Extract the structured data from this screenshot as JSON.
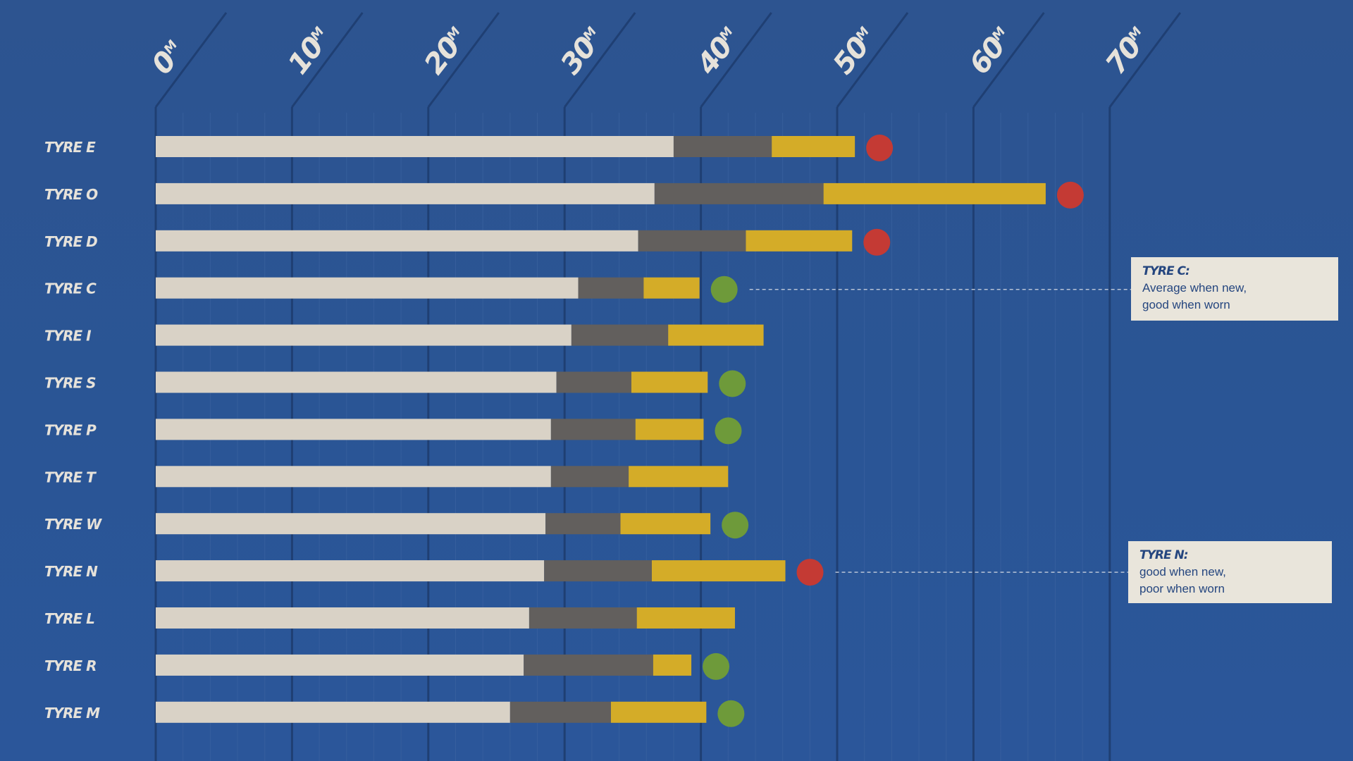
{
  "chart_data": {
    "type": "bar",
    "stacked": true,
    "orientation": "horizontal",
    "xlim": [
      0,
      70
    ],
    "x_ticks": [
      {
        "value": 0,
        "label": "0",
        "unit": "M"
      },
      {
        "value": 10,
        "label": "10",
        "unit": "M"
      },
      {
        "value": 20,
        "label": "20",
        "unit": "M"
      },
      {
        "value": 30,
        "label": "30",
        "unit": "M"
      },
      {
        "value": 40,
        "label": "40",
        "unit": "M"
      },
      {
        "value": 50,
        "label": "50",
        "unit": "M"
      },
      {
        "value": 60,
        "label": "60",
        "unit": "M"
      },
      {
        "value": 70,
        "label": "70",
        "unit": "M"
      }
    ],
    "categories": [
      "TYRE E",
      "TYRE O",
      "TYRE D",
      "TYRE C",
      "TYRE I",
      "TYRE S",
      "TYRE P",
      "TYRE T",
      "TYRE W",
      "TYRE N",
      "TYRE L",
      "TYRE R",
      "TYRE M"
    ],
    "series": [
      {
        "color": "#d9d2c6",
        "values": [
          38.0,
          36.6,
          35.4,
          31.0,
          30.5,
          29.4,
          29.0,
          29.0,
          28.6,
          28.5,
          27.4,
          27.0,
          26.0
        ]
      },
      {
        "color": "#625f5d",
        "values": [
          7.2,
          12.4,
          7.9,
          4.8,
          7.1,
          5.5,
          6.2,
          5.7,
          5.5,
          7.9,
          7.9,
          9.5,
          7.4
        ]
      },
      {
        "color": "#d4ac28",
        "values": [
          6.1,
          16.3,
          7.8,
          4.1,
          7.0,
          5.6,
          5.0,
          7.3,
          6.6,
          9.8,
          7.2,
          2.8,
          7.0
        ]
      }
    ],
    "markers": {
      "colors": {
        "red": "#c43a34",
        "green": "#6e9a3a"
      },
      "rows": [
        "red",
        "red",
        "red",
        "green",
        null,
        "green",
        "green",
        null,
        "green",
        "red",
        null,
        "green",
        "green"
      ]
    },
    "annotations": [
      {
        "target": "TYRE C",
        "title": "TYRE C:",
        "lines": [
          "Average when new,",
          "good when worn"
        ]
      },
      {
        "target": "TYRE N",
        "title": "TYRE N:",
        "lines": [
          "good when new,",
          "poor when worn"
        ]
      }
    ]
  }
}
